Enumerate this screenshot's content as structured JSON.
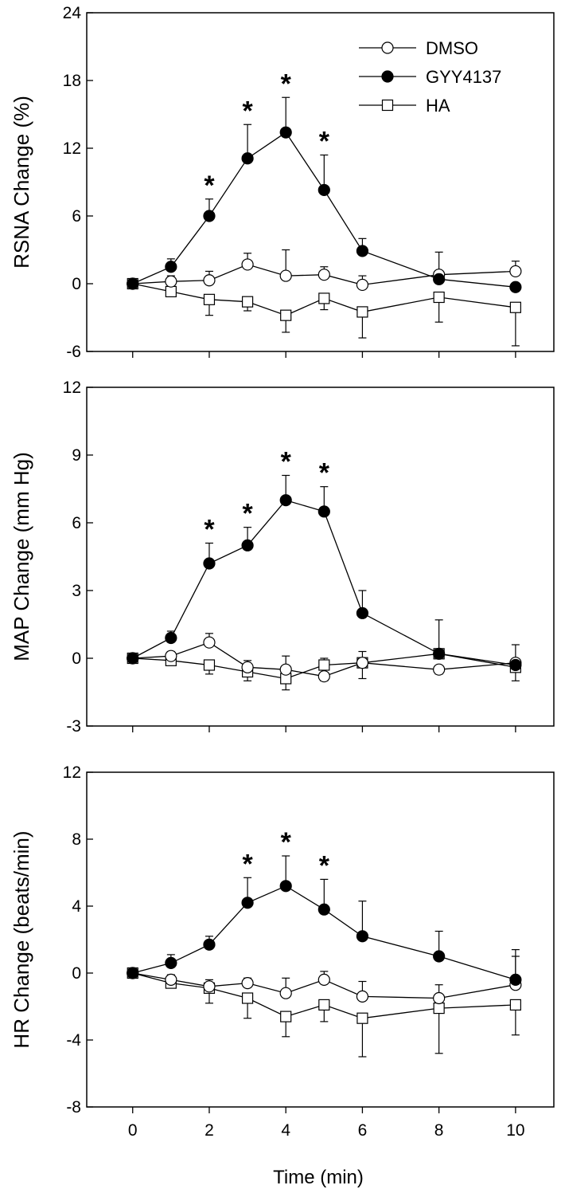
{
  "figure": {
    "xlabel": "Time (min)",
    "legend": [
      "DMSO",
      "GYY4137",
      "HA"
    ]
  },
  "chart_data": [
    {
      "type": "line",
      "ylabel": "RSNA Change (%)",
      "xlim": [
        -1.2,
        11
      ],
      "ylim": [
        -6,
        24
      ],
      "yticks": [
        -6,
        0,
        6,
        12,
        18,
        24
      ],
      "xticks": [
        0,
        2,
        4,
        6,
        8,
        10
      ],
      "series": [
        {
          "name": "DMSO",
          "marker": "open-circle",
          "x": [
            0,
            1,
            2,
            3,
            4,
            5,
            6,
            8,
            10
          ],
          "y": [
            0,
            0.2,
            0.3,
            1.7,
            0.7,
            0.8,
            -0.1,
            0.8,
            1.1
          ],
          "err": [
            0,
            0.5,
            0.8,
            1.0,
            2.3,
            0.7,
            0.8,
            2.0,
            0.9
          ],
          "err_dir": [
            1,
            1,
            1,
            1,
            1,
            1,
            1,
            1,
            1
          ]
        },
        {
          "name": "GYY4137",
          "marker": "filled-circle",
          "x": [
            0,
            1,
            2,
            3,
            4,
            5,
            6,
            8,
            10
          ],
          "y": [
            0,
            1.5,
            6.0,
            11.1,
            13.4,
            8.3,
            2.9,
            0.4,
            -0.3
          ],
          "err": [
            0,
            0.7,
            1.5,
            3.0,
            3.1,
            3.1,
            1.1,
            0,
            0
          ],
          "err_dir": [
            1,
            1,
            1,
            1,
            1,
            1,
            1,
            1,
            1
          ]
        },
        {
          "name": "HA",
          "marker": "open-square",
          "x": [
            0,
            1,
            2,
            3,
            4,
            5,
            6,
            8,
            10
          ],
          "y": [
            0,
            -0.7,
            -1.4,
            -1.6,
            -2.8,
            -1.3,
            -2.5,
            -1.2,
            -2.1
          ],
          "err": [
            0,
            0.4,
            1.4,
            0.8,
            1.5,
            1.0,
            2.3,
            2.2,
            3.4
          ],
          "err_dir": [
            -1,
            -1,
            -1,
            -1,
            -1,
            -1,
            -1,
            -1,
            -1
          ]
        }
      ],
      "significance": [
        {
          "x": 2,
          "y": 7.5,
          "label": "*"
        },
        {
          "x": 3,
          "y": 14.1,
          "label": "*"
        },
        {
          "x": 4,
          "y": 16.5,
          "label": "*"
        },
        {
          "x": 5,
          "y": 11.4,
          "label": "*"
        }
      ]
    },
    {
      "type": "line",
      "ylabel": "MAP Change (mm Hg)",
      "xlim": [
        -1.2,
        11
      ],
      "ylim": [
        -3,
        12
      ],
      "yticks": [
        -3,
        0,
        3,
        6,
        9,
        12
      ],
      "xticks": [
        0,
        2,
        4,
        6,
        8,
        10
      ],
      "series": [
        {
          "name": "DMSO",
          "marker": "open-circle",
          "x": [
            0,
            1,
            2,
            3,
            4,
            5,
            6,
            8,
            10
          ],
          "y": [
            0,
            0.1,
            0.7,
            -0.4,
            -0.5,
            -0.8,
            -0.2,
            -0.5,
            -0.2
          ],
          "err": [
            0,
            0.2,
            0.4,
            0.3,
            0.6,
            0.2,
            0.5,
            0.2,
            0.8
          ],
          "err_dir": [
            1,
            1,
            1,
            1,
            1,
            -1,
            1,
            -1,
            1
          ]
        },
        {
          "name": "GYY4137",
          "marker": "filled-circle",
          "x": [
            0,
            1,
            2,
            3,
            4,
            5,
            6,
            8,
            10
          ],
          "y": [
            0,
            0.9,
            4.2,
            5.0,
            7.0,
            6.5,
            2.0,
            0.2,
            -0.3
          ],
          "err": [
            0,
            0.3,
            0.9,
            0.8,
            1.1,
            1.1,
            1.0,
            0,
            0
          ],
          "err_dir": [
            1,
            1,
            1,
            1,
            1,
            1,
            1,
            1,
            1
          ]
        },
        {
          "name": "HA",
          "marker": "open-square",
          "x": [
            0,
            1,
            2,
            3,
            4,
            5,
            6,
            8,
            10
          ],
          "y": [
            0,
            -0.1,
            -0.3,
            -0.6,
            -0.9,
            -0.3,
            -0.2,
            0.2,
            -0.4
          ],
          "err": [
            0,
            0.1,
            0.4,
            0.4,
            0.5,
            0.3,
            0.7,
            1.5,
            0.6
          ],
          "err_dir": [
            -1,
            -1,
            -1,
            -1,
            -1,
            1,
            -1,
            1,
            -1
          ]
        }
      ],
      "significance": [
        {
          "x": 2,
          "y": 5.1,
          "label": "*"
        },
        {
          "x": 3,
          "y": 5.8,
          "label": "*"
        },
        {
          "x": 4,
          "y": 8.1,
          "label": "*"
        },
        {
          "x": 5,
          "y": 7.6,
          "label": "*"
        }
      ]
    },
    {
      "type": "line",
      "ylabel": "HR Change (beats/min)",
      "xlabel": "Time (min)",
      "xlim": [
        -1.2,
        11
      ],
      "ylim": [
        -8,
        12
      ],
      "yticks": [
        -8,
        -4,
        0,
        4,
        8,
        12
      ],
      "xticks": [
        0,
        2,
        4,
        6,
        8,
        10
      ],
      "series": [
        {
          "name": "DMSO",
          "marker": "open-circle",
          "x": [
            0,
            1,
            2,
            3,
            4,
            5,
            6,
            8,
            10
          ],
          "y": [
            0,
            -0.4,
            -0.8,
            -0.6,
            -1.2,
            -0.4,
            -1.4,
            -1.5,
            -0.7
          ],
          "err": [
            0,
            0.3,
            0.4,
            0.3,
            0.9,
            0.5,
            0.9,
            0.8,
            2.1
          ],
          "err_dir": [
            1,
            1,
            1,
            1,
            1,
            1,
            1,
            1,
            1
          ]
        },
        {
          "name": "GYY4137",
          "marker": "filled-circle",
          "x": [
            0,
            1,
            2,
            3,
            4,
            5,
            6,
            8,
            10
          ],
          "y": [
            0,
            0.6,
            1.7,
            4.2,
            5.2,
            3.8,
            2.2,
            1.0,
            -0.4
          ],
          "err": [
            0,
            0.5,
            0.5,
            1.5,
            1.8,
            1.8,
            2.1,
            1.5,
            1.4
          ],
          "err_dir": [
            1,
            1,
            1,
            1,
            1,
            1,
            1,
            1,
            1
          ]
        },
        {
          "name": "HA",
          "marker": "open-square",
          "x": [
            0,
            1,
            2,
            3,
            4,
            5,
            6,
            8,
            10
          ],
          "y": [
            0,
            -0.6,
            -0.9,
            -1.5,
            -2.6,
            -1.9,
            -2.7,
            -2.1,
            -1.9
          ],
          "err": [
            0,
            0.3,
            0.9,
            1.2,
            1.2,
            1.0,
            2.3,
            2.7,
            1.8
          ],
          "err_dir": [
            -1,
            -1,
            -1,
            -1,
            -1,
            -1,
            -1,
            -1,
            -1
          ]
        }
      ],
      "significance": [
        {
          "x": 3,
          "y": 5.7,
          "label": "*"
        },
        {
          "x": 4,
          "y": 7.0,
          "label": "*"
        },
        {
          "x": 5,
          "y": 5.6,
          "label": "*"
        }
      ]
    }
  ]
}
